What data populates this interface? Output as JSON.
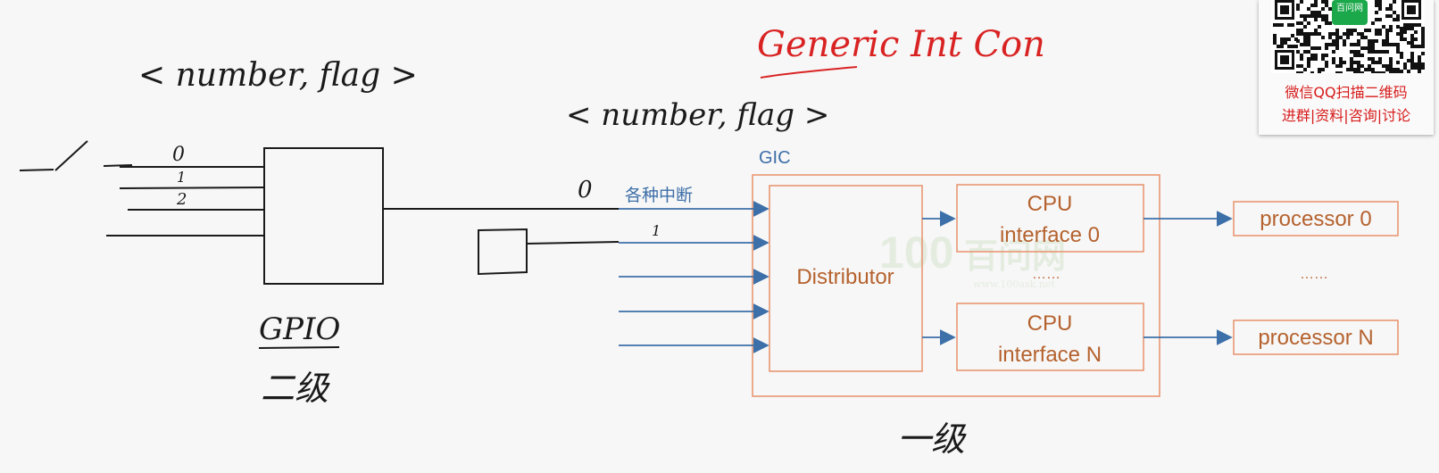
{
  "handwriting": {
    "title": "Generic Int Con",
    "tuple_left": "< number, flag >",
    "tuple_right": "< number, flag >",
    "gpio_label": "GPIO",
    "gpio_level": "二级",
    "gic_level": "一级",
    "line_0": "0",
    "line_1": "1",
    "line_2": "2",
    "gic_in_0": "0",
    "gic_in_1": "1"
  },
  "gic": {
    "label": "GIC",
    "inputs_label": "各种中断",
    "distributor": "Distributor",
    "cpu_if_0_line1": "CPU",
    "cpu_if_0_line2": "interface 0",
    "cpu_if_n_line1": "CPU",
    "cpu_if_n_line2": "interface N",
    "ellipsis_mid": "……",
    "ellipsis_right": "……",
    "processor_0": "processor 0",
    "processor_n": "processor N"
  },
  "watermark": {
    "brand": "百问网",
    "site": "www.100ask.net"
  },
  "qr": {
    "badge": "百问网",
    "line1": "微信QQ扫描二维码",
    "line2": "进群|资料|咨询|讨论"
  },
  "colors": {
    "gic_orange": "#e8916a",
    "gic_text": "#b5622e",
    "arrow_blue": "#3d6fa8",
    "ink": "#1a1a1a",
    "red": "#d92323",
    "qr_red": "#d71b1b"
  }
}
